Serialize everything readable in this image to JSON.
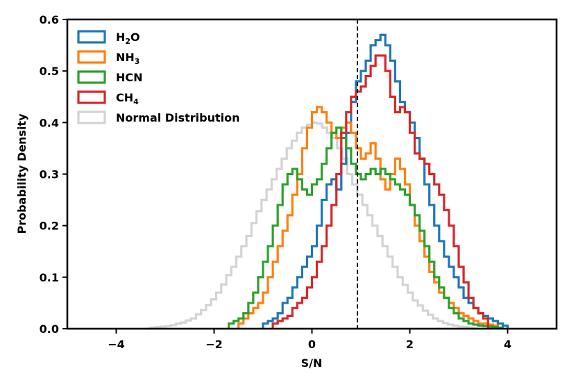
{
  "chart_data": {
    "type": "histogram",
    "xlabel": "S/N",
    "ylabel": "Probability Density",
    "xlim": [
      -5,
      5
    ],
    "ylim": [
      0,
      0.6
    ],
    "xticks": [
      -4,
      -2,
      0,
      2,
      4
    ],
    "xtick_labels": [
      "−4",
      "−2",
      "0",
      "2",
      "4"
    ],
    "yticks": [
      0.0,
      0.1,
      0.2,
      0.3,
      0.4,
      0.5,
      0.6
    ],
    "ytick_labels": [
      "0.0",
      "0.1",
      "0.2",
      "0.3",
      "0.4",
      "0.5",
      "0.6"
    ],
    "grid": false,
    "legend_position": "top-left",
    "vline": {
      "x": 0.93,
      "style": "dashed",
      "color": "#000000"
    },
    "series": [
      {
        "name": "Normal Distribution",
        "legend_parts": [
          [
            "Normal Distribution",
            ""
          ]
        ],
        "color": "#d3d3d3",
        "edges": [
          -3.4,
          3.4
        ],
        "values": [
          0.0,
          0.002,
          0.003,
          0.004,
          0.005,
          0.007,
          0.01,
          0.012,
          0.016,
          0.02,
          0.028,
          0.036,
          0.046,
          0.057,
          0.07,
          0.086,
          0.104,
          0.12,
          0.14,
          0.16,
          0.18,
          0.205,
          0.228,
          0.25,
          0.27,
          0.29,
          0.31,
          0.33,
          0.35,
          0.365,
          0.38,
          0.39,
          0.396,
          0.4,
          0.398,
          0.39,
          0.38,
          0.37,
          0.35,
          0.33,
          0.3,
          0.28,
          0.26,
          0.24,
          0.22,
          0.2,
          0.18,
          0.16,
          0.14,
          0.12,
          0.1,
          0.085,
          0.07,
          0.055,
          0.045,
          0.035,
          0.027,
          0.02,
          0.015,
          0.011,
          0.008,
          0.006,
          0.004,
          0.003,
          0.002,
          0.0
        ]
      },
      {
        "name": "H2O",
        "legend_parts": [
          [
            "H",
            ""
          ],
          [
            "2",
            "sub"
          ],
          [
            "O",
            ""
          ]
        ],
        "color": "#1f77b4",
        "edges": [
          -1.0,
          4.0
        ],
        "values": [
          0.01,
          0.015,
          0.02,
          0.03,
          0.05,
          0.06,
          0.08,
          0.1,
          0.12,
          0.14,
          0.16,
          0.2,
          0.25,
          0.28,
          0.29,
          0.27,
          0.32,
          0.38,
          0.44,
          0.48,
          0.5,
          0.52,
          0.55,
          0.56,
          0.57,
          0.55,
          0.52,
          0.48,
          0.44,
          0.42,
          0.4,
          0.37,
          0.33,
          0.28,
          0.24,
          0.2,
          0.17,
          0.14,
          0.12,
          0.1,
          0.08,
          0.06,
          0.05,
          0.04,
          0.03,
          0.025,
          0.02,
          0.015,
          0.01,
          0.006
        ]
      },
      {
        "name": "NH3",
        "legend_parts": [
          [
            "NH",
            ""
          ],
          [
            "3",
            "sub"
          ]
        ],
        "color": "#ff7f0e",
        "edges": [
          -1.5,
          3.8
        ],
        "values": [
          0.01,
          0.02,
          0.03,
          0.04,
          0.05,
          0.07,
          0.1,
          0.13,
          0.16,
          0.19,
          0.22,
          0.26,
          0.3,
          0.35,
          0.39,
          0.42,
          0.43,
          0.42,
          0.4,
          0.38,
          0.37,
          0.39,
          0.4,
          0.38,
          0.35,
          0.33,
          0.34,
          0.36,
          0.33,
          0.29,
          0.27,
          0.3,
          0.33,
          0.31,
          0.28,
          0.24,
          0.2,
          0.17,
          0.14,
          0.11,
          0.09,
          0.07,
          0.06,
          0.05,
          0.04,
          0.03,
          0.025,
          0.02,
          0.015,
          0.01,
          0.01,
          0.008,
          0.006
        ]
      },
      {
        "name": "HCN",
        "legend_parts": [
          [
            "HCN",
            ""
          ]
        ],
        "color": "#2ca02c",
        "edges": [
          -1.7,
          3.9
        ],
        "values": [
          0.01,
          0.015,
          0.02,
          0.03,
          0.05,
          0.07,
          0.1,
          0.13,
          0.16,
          0.2,
          0.24,
          0.28,
          0.3,
          0.31,
          0.29,
          0.27,
          0.26,
          0.28,
          0.29,
          0.32,
          0.35,
          0.38,
          0.39,
          0.37,
          0.35,
          0.32,
          0.3,
          0.29,
          0.3,
          0.31,
          0.3,
          0.31,
          0.3,
          0.29,
          0.28,
          0.27,
          0.26,
          0.24,
          0.22,
          0.19,
          0.16,
          0.13,
          0.1,
          0.08,
          0.06,
          0.04,
          0.03,
          0.02,
          0.015,
          0.01,
          0.008,
          0.006,
          0.005,
          0.004,
          0.003,
          0.002
        ]
      },
      {
        "name": "CH4",
        "legend_parts": [
          [
            "CH",
            ""
          ],
          [
            "4",
            "sub"
          ]
        ],
        "color": "#d62728",
        "edges": [
          -0.8,
          3.6
        ],
        "values": [
          0.01,
          0.015,
          0.02,
          0.025,
          0.04,
          0.05,
          0.06,
          0.08,
          0.1,
          0.13,
          0.16,
          0.2,
          0.24,
          0.3,
          0.38,
          0.42,
          0.45,
          0.46,
          0.47,
          0.49,
          0.51,
          0.53,
          0.53,
          0.5,
          0.45,
          0.42,
          0.43,
          0.42,
          0.38,
          0.34,
          0.33,
          0.32,
          0.3,
          0.28,
          0.26,
          0.23,
          0.2,
          0.16,
          0.12,
          0.09,
          0.06,
          0.04,
          0.03,
          0.02
        ]
      }
    ]
  }
}
